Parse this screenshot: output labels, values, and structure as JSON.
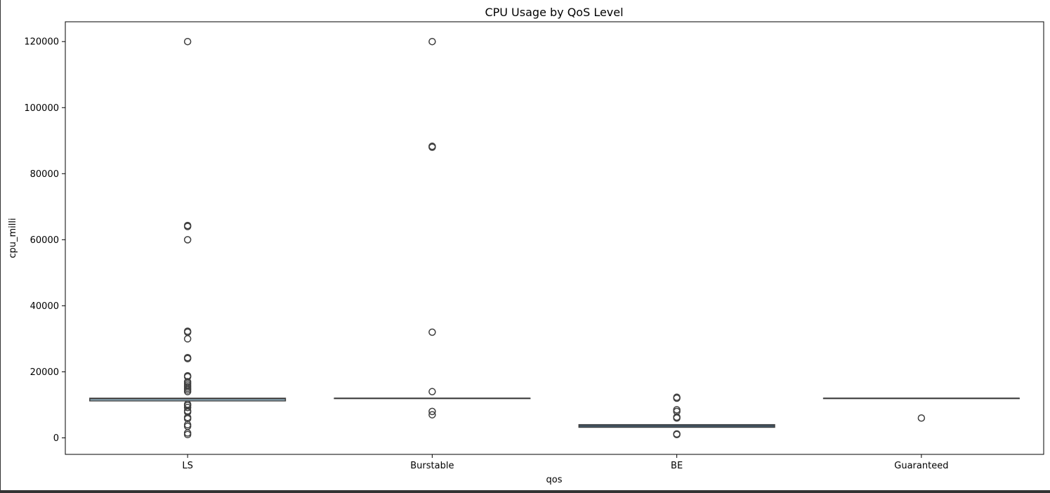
{
  "chart_data": {
    "type": "box",
    "title": "CPU Usage by QoS Level",
    "xlabel": "qos",
    "ylabel": "cpu_milli",
    "ylim": [
      -5000,
      126000
    ],
    "yticks": [
      0,
      20000,
      40000,
      60000,
      80000,
      100000,
      120000
    ],
    "ytick_labels": [
      "0",
      "20000",
      "40000",
      "60000",
      "80000",
      "100000",
      "120000"
    ],
    "grid": false,
    "legend": "none",
    "categories": [
      "LS",
      "Burstable",
      "BE",
      "Guaranteed"
    ],
    "boxes": [
      {
        "category": "LS",
        "color": "#a6cee3",
        "q1": 11200,
        "median": 11800,
        "q3": 12000,
        "whisker_low": 11200,
        "whisker_high": 12000,
        "outliers": [
          1000,
          1500,
          3500,
          4000,
          5800,
          6200,
          7800,
          8200,
          9200,
          9800,
          10200,
          14000,
          14500,
          15000,
          15500,
          16000,
          16500,
          17000,
          18500,
          18800,
          24000,
          24300,
          30000,
          32000,
          32300,
          60000,
          64000,
          64300,
          120000
        ]
      },
      {
        "category": "Burstable",
        "color": "#d9e6f0",
        "q1": 12000,
        "median": 12000,
        "q3": 12000,
        "whisker_low": 12000,
        "whisker_high": 12000,
        "outliers": [
          7000,
          8000,
          14000,
          32000,
          88000,
          88300,
          120000
        ]
      },
      {
        "category": "BE",
        "color": "#4f8fc3",
        "q1": 3200,
        "median": 3600,
        "q3": 4000,
        "whisker_low": 3200,
        "whisker_high": 4000,
        "outliers": [
          1000,
          1200,
          6000,
          6300,
          8000,
          8500,
          12000,
          12300
        ]
      },
      {
        "category": "Guaranteed",
        "color": "#d9e6f0",
        "q1": 12000,
        "median": 12000,
        "q3": 12000,
        "whisker_low": 12000,
        "whisker_high": 12000,
        "outliers": [
          6000
        ]
      }
    ]
  }
}
